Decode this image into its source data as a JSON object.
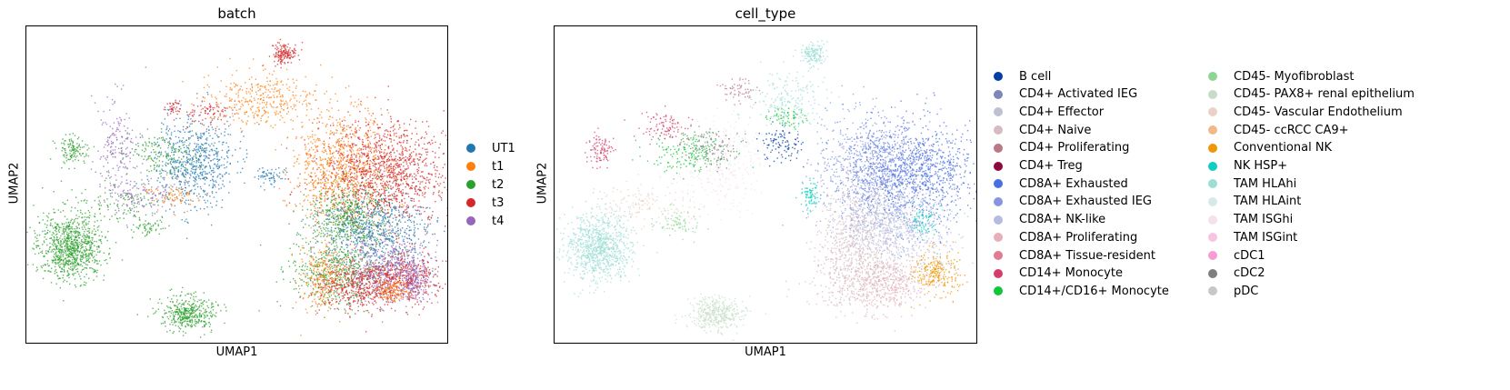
{
  "chart_data": [
    {
      "type": "scatter",
      "title": "batch",
      "xlabel": "UMAP1",
      "ylabel": "UMAP2",
      "grid": false,
      "legend_position": "right",
      "categories": [
        {
          "name": "UT1",
          "color": "#1f77b4"
        },
        {
          "name": "t1",
          "color": "#ff7f0e"
        },
        {
          "name": "t2",
          "color": "#2ca02c"
        },
        {
          "name": "t3",
          "color": "#d62728"
        },
        {
          "name": "t4",
          "color": "#9467bd"
        }
      ]
    },
    {
      "type": "scatter",
      "title": "cell_type",
      "xlabel": "UMAP1",
      "ylabel": "UMAP2",
      "grid": false,
      "legend_position": "right",
      "categories": [
        {
          "name": "B cell",
          "color": "#023fa5"
        },
        {
          "name": "CD4+ Activated IEG",
          "color": "#7d87b9"
        },
        {
          "name": "CD4+ Effector",
          "color": "#bec1d4"
        },
        {
          "name": "CD4+ Naive",
          "color": "#d6bcc0"
        },
        {
          "name": "CD4+ Proliferating",
          "color": "#bb7784"
        },
        {
          "name": "CD4+ Treg",
          "color": "#8e063b"
        },
        {
          "name": "CD8A+ Exhausted",
          "color": "#4a6fe3"
        },
        {
          "name": "CD8A+ Exhausted IEG",
          "color": "#8595e1"
        },
        {
          "name": "CD8A+ NK-like",
          "color": "#b5bbe3"
        },
        {
          "name": "CD8A+ Proliferating",
          "color": "#e6afb9"
        },
        {
          "name": "CD8A+ Tissue-resident",
          "color": "#e07b91"
        },
        {
          "name": "CD14+ Monocyte",
          "color": "#d33f6a"
        },
        {
          "name": "CD14+/CD16+ Monocyte",
          "color": "#11c638"
        },
        {
          "name": "CD45- Myofibroblast",
          "color": "#8dd593"
        },
        {
          "name": "CD45- PAX8+ renal epithelium",
          "color": "#c6dec7"
        },
        {
          "name": "CD45- Vascular Endothelium",
          "color": "#ead3c6"
        },
        {
          "name": "CD45- ccRCC CA9+",
          "color": "#f0b98d"
        },
        {
          "name": "Conventional NK",
          "color": "#ef9708"
        },
        {
          "name": "NK HSP+",
          "color": "#0fcfc0"
        },
        {
          "name": "TAM HLAhi",
          "color": "#9cded6"
        },
        {
          "name": "TAM HLAint",
          "color": "#d5eae7"
        },
        {
          "name": "TAM ISGhi",
          "color": "#f3e1eb"
        },
        {
          "name": "TAM ISGint",
          "color": "#f6c4e1"
        },
        {
          "name": "cDC1",
          "color": "#f79cd4"
        },
        {
          "name": "cDC2",
          "color": "#7f7f7f"
        },
        {
          "name": "pDC",
          "color": "#c7c7c7"
        }
      ]
    }
  ]
}
